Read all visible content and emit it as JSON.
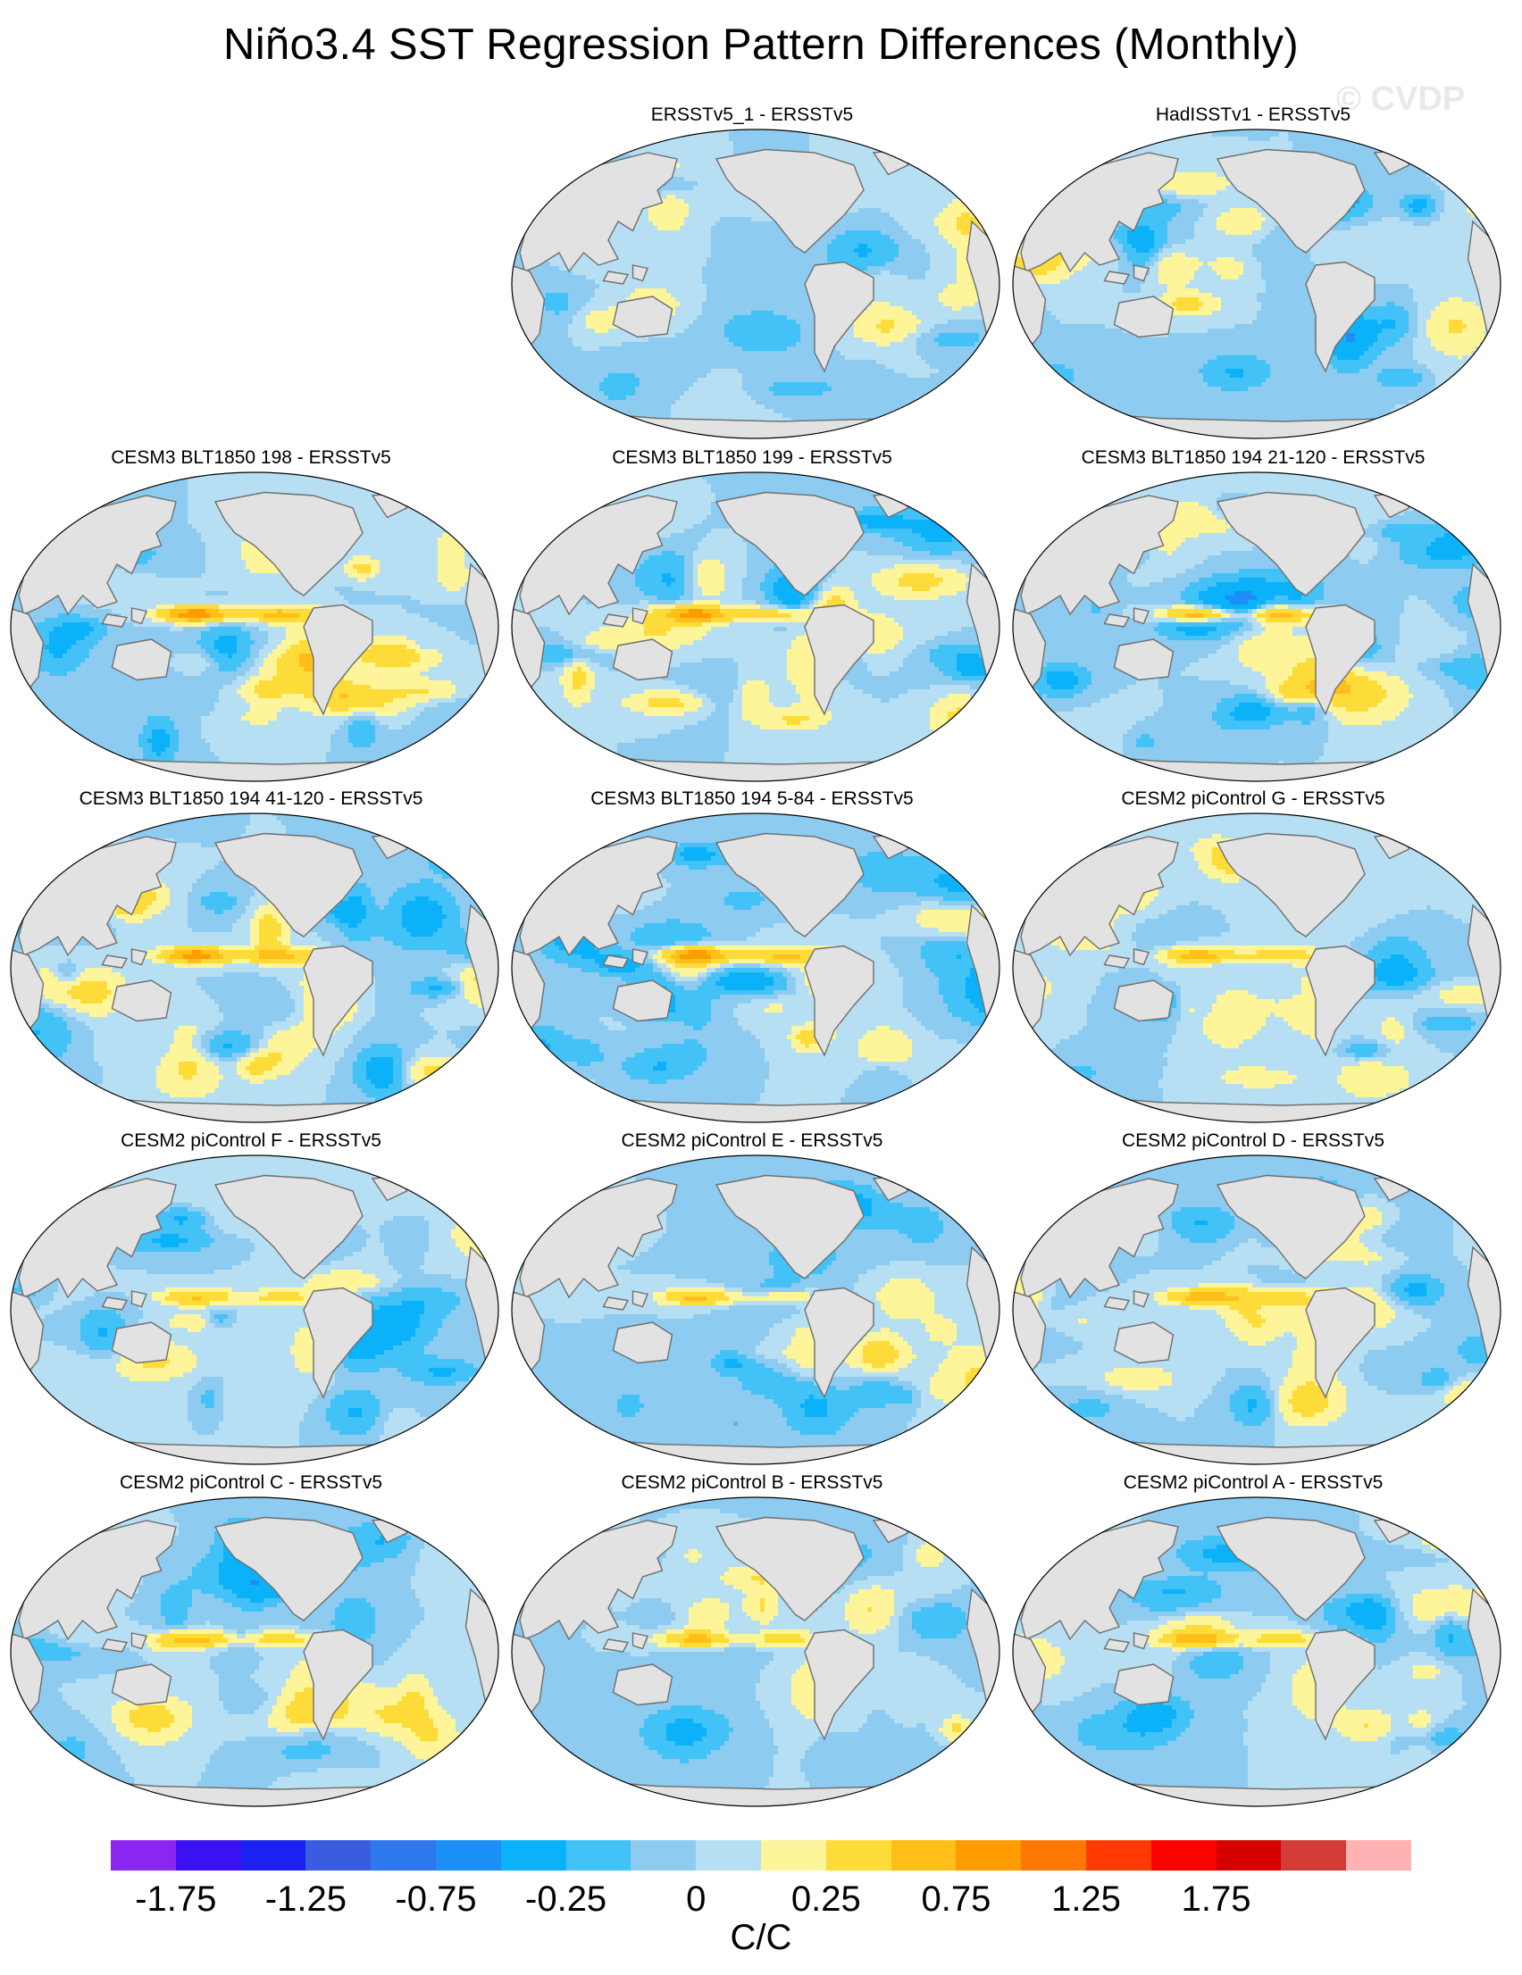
{
  "chart_data": {
    "type": "heatmap",
    "title": "Niño3.4 SST Regression Pattern Differences (Monthly)",
    "watermark": "© CVDP",
    "projection": "Robinson (Pacific-centered)",
    "variable": "SST regression difference",
    "units": "C/C",
    "panels": [
      {
        "title": "ERSSTv5_1 - ERSSTv5",
        "seed": 3,
        "enso": 0.0,
        "amp": 0.18
      },
      {
        "title": "HadISSTv1 - ERSSTv5",
        "seed": 7,
        "enso": -0.05,
        "amp": 0.22
      },
      {
        "title": "CESM3 BLT1850 198 - ERSSTv5",
        "seed": 11,
        "enso": 0.9,
        "amp": 0.22
      },
      {
        "title": "CESM3 BLT1850 199 - ERSSTv5",
        "seed": 13,
        "enso": 0.75,
        "amp": 0.22
      },
      {
        "title": "CESM3 BLT1850 194 21-120 - ERSSTv5",
        "seed": 17,
        "enso": 0.85,
        "amp": 0.26
      },
      {
        "title": "CESM3 BLT1850 194 41-120 - ERSSTv5",
        "seed": 19,
        "enso": 0.85,
        "amp": 0.27
      },
      {
        "title": "CESM3 BLT1850 194 5-84 - ERSSTv5",
        "seed": 23,
        "enso": 0.8,
        "amp": 0.27
      },
      {
        "title": "CESM2 piControl G - ERSSTv5",
        "seed": 29,
        "enso": 0.6,
        "amp": 0.2
      },
      {
        "title": "CESM2 piControl F - ERSSTv5",
        "seed": 31,
        "enso": 0.5,
        "amp": 0.2
      },
      {
        "title": "CESM2 piControl E - ERSSTv5",
        "seed": 37,
        "enso": 0.55,
        "amp": 0.2
      },
      {
        "title": "CESM2 piControl D - ERSSTv5",
        "seed": 41,
        "enso": 0.55,
        "amp": 0.21
      },
      {
        "title": "CESM2 piControl C - ERSSTv5",
        "seed": 43,
        "enso": 0.55,
        "amp": 0.2
      },
      {
        "title": "CESM2 piControl B - ERSSTv5",
        "seed": 47,
        "enso": 0.55,
        "amp": 0.2
      },
      {
        "title": "CESM2 piControl A - ERSSTv5",
        "seed": 53,
        "enso": 0.55,
        "amp": 0.2
      }
    ],
    "colorbar": {
      "boundaries": [
        -2.0,
        -1.75,
        -1.5,
        -1.25,
        -1.0,
        -0.75,
        -0.5,
        -0.25,
        -0.1,
        0,
        0.1,
        0.25,
        0.5,
        0.75,
        1.0,
        1.25,
        1.5,
        1.75,
        2.0,
        2.25
      ],
      "colors": [
        "#8a26f0",
        "#3b10f5",
        "#1a21f2",
        "#3a5ce0",
        "#2e78ee",
        "#1b8ff7",
        "#0bb1f9",
        "#42c2f6",
        "#8dcbf0",
        "#b7dff3",
        "#fef59a",
        "#fddc3a",
        "#ffbf18",
        "#ff9c00",
        "#ff7806",
        "#ff3a02",
        "#ff0000",
        "#d70000",
        "#d33b36",
        "#ffb2b1"
      ],
      "tick_labels": [
        "-1.75",
        "-1.25",
        "-0.75",
        "-0.25",
        "0",
        "0.25",
        "0.75",
        "1.25",
        "1.75"
      ],
      "tick_boundary_index": [
        1,
        3,
        5,
        7,
        9,
        11,
        13,
        15,
        17
      ]
    },
    "land_color": "#e2e2e2",
    "coast_color": "#6e6e6e"
  }
}
